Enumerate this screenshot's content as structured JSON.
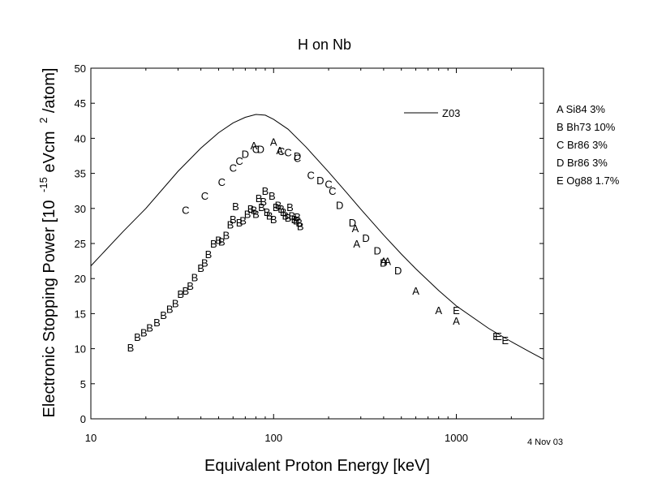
{
  "chart_data": {
    "type": "scatter",
    "title": "H on Nb",
    "xlabel": "Equivalent Proton Energy [keV]",
    "ylabel_prefix": "Electronic Stopping Power [10",
    "ylabel_exp1": "-15",
    "ylabel_mid": "eVcm",
    "ylabel_exp2": "2",
    "ylabel_suffix": "/atom]",
    "date_note": "4 Nov 03",
    "xscale": "log",
    "xlim": [
      10,
      3000
    ],
    "ylim": [
      0,
      50
    ],
    "x_ticks": [
      {
        "value": 10,
        "label": "10"
      },
      {
        "value": 100,
        "label": "100"
      },
      {
        "value": 1000,
        "label": "1000"
      }
    ],
    "y_ticks": [
      {
        "value": 0,
        "label": "0"
      },
      {
        "value": 5,
        "label": "5"
      },
      {
        "value": 10,
        "label": "10"
      },
      {
        "value": 15,
        "label": "15"
      },
      {
        "value": 20,
        "label": "20"
      },
      {
        "value": 25,
        "label": "25"
      },
      {
        "value": 30,
        "label": "30"
      },
      {
        "value": 35,
        "label": "35"
      },
      {
        "value": 40,
        "label": "40"
      },
      {
        "value": 45,
        "label": "45"
      },
      {
        "value": 50,
        "label": "50"
      }
    ],
    "curve": {
      "name": "Z03",
      "points": [
        [
          10,
          21.8
        ],
        [
          15,
          26.7
        ],
        [
          20,
          30
        ],
        [
          30,
          35.3
        ],
        [
          40,
          38.6
        ],
        [
          50,
          40.8
        ],
        [
          60,
          42.2
        ],
        [
          70,
          43
        ],
        [
          80,
          43.4
        ],
        [
          90,
          43.3
        ],
        [
          100,
          42.7
        ],
        [
          120,
          41.3
        ],
        [
          150,
          38.8
        ],
        [
          200,
          35.2
        ],
        [
          250,
          32.3
        ],
        [
          300,
          29.9
        ],
        [
          400,
          26.2
        ],
        [
          500,
          23.5
        ],
        [
          600,
          21.4
        ],
        [
          800,
          18.3
        ],
        [
          1000,
          16.1
        ],
        [
          1500,
          12.9
        ],
        [
          2000,
          11
        ],
        [
          2500,
          9.6
        ],
        [
          3000,
          8.5
        ]
      ]
    },
    "legend_entries": [
      {
        "letter": "A",
        "label": "A Si84 3%"
      },
      {
        "letter": "B",
        "label": "B Bh73 10%"
      },
      {
        "letter": "C",
        "label": "C Br86 3%"
      },
      {
        "letter": "D",
        "label": "D Br86 3%"
      },
      {
        "letter": "E",
        "label": "E Og88 1.7%"
      }
    ],
    "series": [
      {
        "letter": "A",
        "points": [
          [
            78,
            39
          ],
          [
            100,
            39.5
          ],
          [
            108,
            38.3
          ],
          [
            280,
            27.2
          ],
          [
            285,
            25
          ],
          [
            400,
            22.5
          ],
          [
            420,
            22.5
          ],
          [
            600,
            18.3
          ],
          [
            800,
            15.5
          ],
          [
            1000,
            14
          ]
        ]
      },
      {
        "letter": "B",
        "points": [
          [
            16.5,
            10.2
          ],
          [
            18,
            11.7
          ],
          [
            19.5,
            12.3
          ],
          [
            21,
            13
          ],
          [
            23,
            13.8
          ],
          [
            25,
            14.8
          ],
          [
            27,
            15.7
          ],
          [
            29,
            16.5
          ],
          [
            31,
            17.8
          ],
          [
            33,
            18.3
          ],
          [
            35,
            19
          ],
          [
            37,
            20.2
          ],
          [
            40,
            21.5
          ],
          [
            42,
            22.3
          ],
          [
            44,
            23.5
          ],
          [
            47,
            25
          ],
          [
            50,
            25.5
          ],
          [
            52,
            25.3
          ],
          [
            55,
            26.2
          ],
          [
            58,
            27.7
          ],
          [
            60,
            28.5
          ],
          [
            62,
            30.3
          ],
          [
            65,
            28
          ],
          [
            68,
            28.3
          ],
          [
            72,
            29.2
          ],
          [
            75,
            30
          ],
          [
            78,
            29.8
          ],
          [
            80,
            29.2
          ],
          [
            83,
            31.5
          ],
          [
            86,
            30.2
          ],
          [
            88,
            31
          ],
          [
            90,
            32.5
          ],
          [
            92,
            29.5
          ],
          [
            95,
            29
          ],
          [
            98,
            31.8
          ],
          [
            100,
            28.5
          ],
          [
            103,
            30.2
          ],
          [
            106,
            30.5
          ],
          [
            110,
            30
          ],
          [
            113,
            29.5
          ],
          [
            116,
            29
          ],
          [
            120,
            28.7
          ],
          [
            123,
            30.2
          ],
          [
            126,
            29
          ],
          [
            130,
            28.5
          ],
          [
            133,
            28.3
          ],
          [
            135,
            28.8
          ],
          [
            138,
            28
          ],
          [
            140,
            27.5
          ]
        ]
      },
      {
        "letter": "C",
        "points": [
          [
            33,
            29.8
          ],
          [
            42,
            31.8
          ],
          [
            52,
            33.8
          ],
          [
            60,
            35.8
          ],
          [
            65,
            36.8
          ],
          [
            80,
            38.5
          ],
          [
            110,
            38.2
          ],
          [
            120,
            38
          ],
          [
            135,
            37.2
          ],
          [
            160,
            34.8
          ],
          [
            200,
            33.5
          ],
          [
            210,
            32.5
          ]
        ]
      },
      {
        "letter": "D",
        "points": [
          [
            70,
            37.8
          ],
          [
            85,
            38.5
          ],
          [
            135,
            37.5
          ],
          [
            180,
            34
          ],
          [
            230,
            30.5
          ],
          [
            270,
            28
          ],
          [
            320,
            25.8
          ],
          [
            370,
            24
          ],
          [
            400,
            22.3
          ],
          [
            480,
            21.2
          ]
        ]
      },
      {
        "letter": "E",
        "points": [
          [
            1000,
            15.5
          ],
          [
            1650,
            11.8
          ],
          [
            1700,
            11.8
          ],
          [
            1850,
            11.2
          ]
        ]
      }
    ]
  }
}
